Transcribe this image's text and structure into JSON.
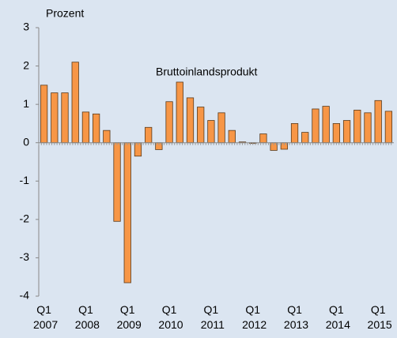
{
  "chart_data": {
    "type": "bar",
    "y_label": "Prozent",
    "annotation": "Bruttoinlandsprodukt",
    "categories": [
      "Q1 2007",
      null,
      null,
      null,
      "Q1 2008",
      null,
      null,
      null,
      "Q1 2009",
      null,
      null,
      null,
      "Q1 2010",
      null,
      null,
      null,
      "Q1 2011",
      null,
      null,
      null,
      "Q1 2012",
      null,
      null,
      null,
      "Q1 2013",
      null,
      null,
      null,
      "Q1 2014",
      null,
      null,
      null,
      "Q1 2015",
      null
    ],
    "values": [
      1.5,
      1.3,
      1.3,
      2.1,
      0.8,
      0.75,
      0.32,
      -2.05,
      -3.65,
      -0.35,
      0.4,
      -0.18,
      1.07,
      1.58,
      1.17,
      0.93,
      0.58,
      0.78,
      0.32,
      0.02,
      -0.02,
      0.23,
      -0.2,
      -0.17,
      0.5,
      0.27,
      0.88,
      0.95,
      0.5,
      0.58,
      0.85,
      0.78,
      1.1,
      0.82
    ],
    "color": "#f79646",
    "ylim": [
      -4,
      3
    ],
    "yticks": [
      -4,
      -3,
      -2,
      -1,
      0,
      1,
      2,
      3
    ],
    "grid": false
  }
}
